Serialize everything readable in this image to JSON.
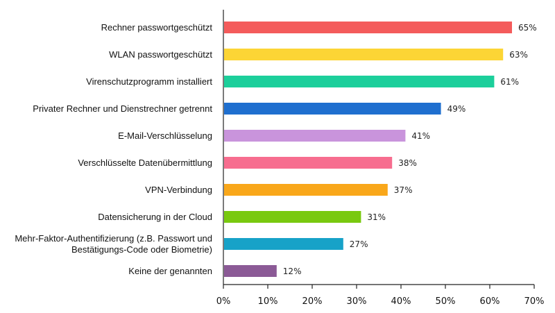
{
  "chart_data": {
    "type": "bar",
    "orientation": "horizontal",
    "categories": [
      [
        "Rechner passwortgeschützt"
      ],
      [
        "WLAN passwortgeschützt"
      ],
      [
        "Virenschutzprogramm installiert"
      ],
      [
        "Privater Rechner und Dienstrechner getrennt"
      ],
      [
        "E-Mail-Verschlüsselung"
      ],
      [
        "Verschlüsselte Datenübermittlung"
      ],
      [
        "VPN-Verbindung"
      ],
      [
        "Datensicherung in der Cloud"
      ],
      [
        "Mehr-Faktor-Authentifizierung (z.B. Passwort und",
        "Bestätigungs-Code oder Biometrie)"
      ],
      [
        "Keine der genannten"
      ]
    ],
    "values": [
      65,
      63,
      61,
      49,
      41,
      38,
      37,
      31,
      27,
      12
    ],
    "value_labels": [
      "65%",
      "63%",
      "61%",
      "49%",
      "41%",
      "38%",
      "37%",
      "31%",
      "27%",
      "12%"
    ],
    "colors": [
      "#f45b5b",
      "#fcd535",
      "#1ccf9b",
      "#1f6fcf",
      "#c994dc",
      "#f76d8f",
      "#f9a71a",
      "#79c90f",
      "#17a2c8",
      "#8b5a96"
    ],
    "xlim": [
      0,
      70
    ],
    "xticks": [
      "0%",
      "10%",
      "20%",
      "30%",
      "40%",
      "50%",
      "60%",
      "70%"
    ],
    "title": "",
    "xlabel": "",
    "ylabel": ""
  }
}
